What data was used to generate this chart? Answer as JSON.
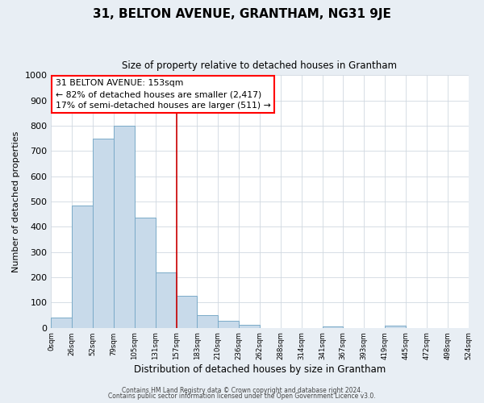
{
  "title": "31, BELTON AVENUE, GRANTHAM, NG31 9JE",
  "subtitle": "Size of property relative to detached houses in Grantham",
  "xlabel": "Distribution of detached houses by size in Grantham",
  "ylabel": "Number of detached properties",
  "num_bins": 20,
  "bar_heights": [
    42,
    485,
    750,
    800,
    435,
    220,
    128,
    50,
    28,
    13,
    0,
    0,
    0,
    5,
    0,
    0,
    8,
    0,
    0,
    0
  ],
  "bar_color": "#c8daea",
  "bar_edge_color": "#7aaac8",
  "bar_linewidth": 0.7,
  "vline_bin": 6,
  "vline_color": "#cc0000",
  "vline_linewidth": 1.2,
  "ylim": [
    0,
    1000
  ],
  "yticks": [
    0,
    100,
    200,
    300,
    400,
    500,
    600,
    700,
    800,
    900,
    1000
  ],
  "tick_labels": [
    "0sqm",
    "26sqm",
    "52sqm",
    "79sqm",
    "105sqm",
    "131sqm",
    "157sqm",
    "183sqm",
    "210sqm",
    "236sqm",
    "262sqm",
    "288sqm",
    "314sqm",
    "341sqm",
    "367sqm",
    "393sqm",
    "419sqm",
    "445sqm",
    "472sqm",
    "498sqm",
    "524sqm"
  ],
  "annotation_box_text": "31 BELTON AVENUE: 153sqm\n← 82% of detached houses are smaller (2,417)\n17% of semi-detached houses are larger (511) →",
  "footer_line1": "Contains HM Land Registry data © Crown copyright and database right 2024.",
  "footer_line2": "Contains public sector information licensed under the Open Government Licence v3.0.",
  "background_color": "#e8eef4",
  "plot_bg_color": "#ffffff",
  "grid_color": "#d0d8e0",
  "title_fontsize": 11,
  "subtitle_fontsize": 8.5
}
